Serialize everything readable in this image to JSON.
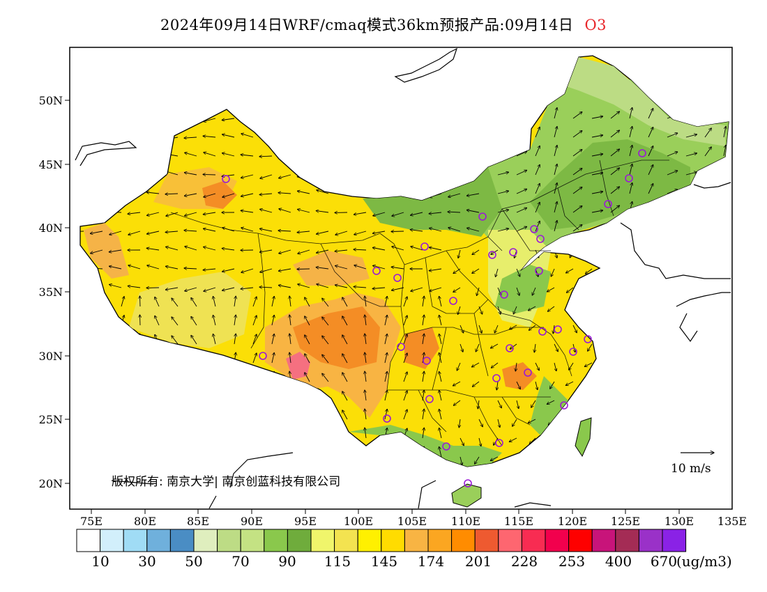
{
  "title": {
    "text": "2024年09月14日WRF/cmaq模式36km预报产品:09月14日",
    "pollutant": "O3",
    "pollutant_color": "#e8262a"
  },
  "axes": {
    "lat_labels": [
      "50N",
      "45N",
      "40N",
      "35N",
      "30N",
      "25N",
      "20N"
    ],
    "lon_labels": [
      "75E",
      "80E",
      "85E",
      "90E",
      "95E",
      "100E",
      "105E",
      "110E",
      "115E",
      "120E",
      "125E",
      "130E",
      "135E"
    ]
  },
  "copyright": "版权所有: 南京大学| 南京创蓝科技有限公司",
  "wind_scale": {
    "label": "10 m/s"
  },
  "legend": {
    "colors": [
      "#ffffff",
      "#d2effb",
      "#a0dcf5",
      "#6fb0dc",
      "#4a8dc4",
      "#dfeebe",
      "#bddc85",
      "#c4e283",
      "#8ac84c",
      "#6fac3c",
      "#f0f56b",
      "#f3e350",
      "#fff000",
      "#ffdc00",
      "#f8b443",
      "#fba621",
      "#ff8c00",
      "#ee5a30",
      "#fe6670",
      "#f82c52",
      "#f2004d",
      "#fe0000",
      "#c8147a",
      "#a42c55",
      "#9a31c8",
      "#8a22e6"
    ],
    "labels": [
      "10",
      "30",
      "50",
      "70",
      "90",
      "115",
      "145",
      "174",
      "201",
      "228",
      "253",
      "400",
      "670"
    ],
    "unit": "(ug/m3)"
  },
  "station_color": "#9a1ad6"
}
